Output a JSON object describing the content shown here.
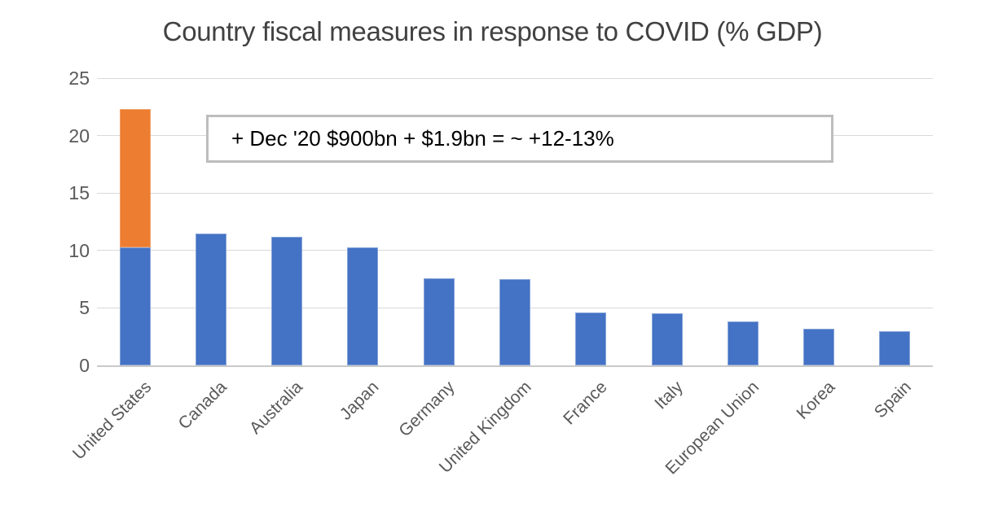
{
  "chart": {
    "title": "Country fiscal measures in response to COVID (% GDP)",
    "annotation_text": "+ Dec '20 $900bn + $1.9bn = ~ +12-13%",
    "colors": {
      "bar_blue": "#4472C4",
      "bar_orange": "#ED7D31",
      "gridline": "#D9D9D9",
      "axis_line": "#C9C9C9",
      "title_text": "#414141",
      "axis_label_text": "#595959",
      "annotation_border": "#BDBDBD",
      "annotation_text_color": "#000000"
    }
  },
  "chart_data": {
    "type": "bar",
    "stacked": true,
    "title": "Country fiscal measures in response to COVID (% GDP)",
    "categories": [
      "United States",
      "Canada",
      "Australia",
      "Japan",
      "Germany",
      "United Kingdom",
      "France",
      "Italy",
      "European Union",
      "Korea",
      "Spain"
    ],
    "series": [
      {
        "name": "fiscal-measures-pct-gdp",
        "color": "#4472C4",
        "values": [
          10.3,
          11.5,
          11.2,
          10.3,
          7.6,
          7.5,
          4.6,
          4.5,
          3.8,
          3.2,
          3.0
        ]
      },
      {
        "name": "dec-2020-stimulus-addition",
        "color": "#ED7D31",
        "values": [
          12.0,
          0,
          0,
          0,
          0,
          0,
          0,
          0,
          0,
          0,
          0
        ]
      }
    ],
    "xlabel": "",
    "ylabel": "",
    "ylim": [
      0,
      25
    ],
    "yticks": [
      0,
      5,
      10,
      15,
      20,
      25
    ],
    "grid": true,
    "legend": false,
    "annotations": [
      {
        "text": "+ Dec '20 $900bn + $1.9bn = ~ +12-13%"
      }
    ]
  }
}
